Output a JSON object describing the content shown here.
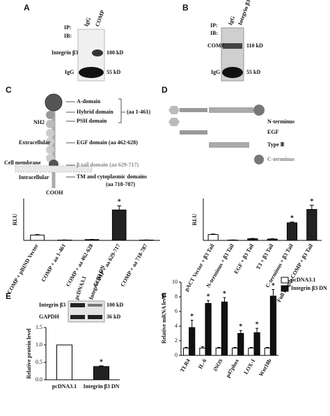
{
  "panel_labels": [
    "A",
    "B",
    "C",
    "D",
    "E",
    "F"
  ],
  "blot_a": {
    "ip": "IP:",
    "ib": "IB:",
    "lanes": [
      "IgG",
      "COMP"
    ],
    "bands": [
      "Integrin β3",
      "IgG"
    ],
    "sizes": [
      "100 kD",
      "55 kD"
    ]
  },
  "blot_b": {
    "ip": "IP:",
    "ib": "IB:",
    "lanes": [
      "IgG",
      "Integrin β3"
    ],
    "bands": [
      "COMP",
      "IgG"
    ],
    "sizes": [
      "110 kD",
      "55 kD"
    ]
  },
  "diagram_c": {
    "domains": [
      "A-domain",
      "Hybrid domain",
      "PSH domain",
      "EGF domain (aa 462-628)",
      "β tail domain (aa 629-717)",
      "TM and cytoplasmic domains"
    ],
    "ranges": [
      "(aa 1-461)",
      "(aa 718-787)"
    ],
    "ends": [
      "NH2",
      "COOH"
    ],
    "regions": [
      "Extracellular",
      "Cell membrane",
      "Intracellular"
    ]
  },
  "diagram_d": {
    "legend": [
      "N-terminus",
      "EGF",
      "Type Ⅲ",
      "C-terminus"
    ]
  },
  "blot_e": {
    "lanes": [
      "pcDNA3.1",
      "Integrin β3 DN"
    ],
    "bands": [
      "Integrin β3",
      "GAPDH"
    ],
    "sizes": [
      "100 kD",
      "36 kD"
    ]
  },
  "chart_data": [
    {
      "type": "bar",
      "y_label": "RLU",
      "categories": [
        "COMP + pBIND Vector",
        "COMP + aa 1-461",
        "COMP + aa 462-628",
        "COMP + aa 629-717",
        "COMP + aa 718-787"
      ],
      "values": [
        0.32,
        0.02,
        0.05,
        1.82,
        0.02
      ],
      "errors": [
        0.03,
        0.01,
        0.01,
        0.25,
        0.01
      ],
      "annotations": [
        null,
        null,
        null,
        "*",
        null
      ],
      "colors": [
        "#ffffff",
        "#222222",
        "#222222",
        "#222222",
        "#222222"
      ],
      "ylim": [
        0,
        2.5
      ]
    },
    {
      "type": "bar",
      "y_label": "RLU",
      "categories": [
        "pACT Vector + β3 Tail",
        "N-terminus + β3 Tail",
        "EGF + β3 Tail",
        "T3 + β3 Tail",
        "C-terminus + β3 Tail",
        "Full length COMP + β3 Tail"
      ],
      "values": [
        0.35,
        0.02,
        0.1,
        0.08,
        1.05,
        1.85
      ],
      "errors": [
        0.03,
        0.01,
        0.02,
        0.02,
        0.05,
        0.25
      ],
      "annotations": [
        null,
        null,
        null,
        null,
        "*",
        "*"
      ],
      "colors": [
        "#ffffff",
        "#222222",
        "#222222",
        "#222222",
        "#222222",
        "#222222"
      ],
      "ylim": [
        0,
        2.5
      ]
    },
    {
      "type": "bar",
      "y_label": "Relative protein level",
      "categories": [
        "pcDNA3.1",
        "Integrin β3 DN"
      ],
      "values": [
        1.0,
        0.38
      ],
      "errors": [
        0,
        0.02
      ],
      "annotations": [
        null,
        "*"
      ],
      "colors": [
        "#ffffff",
        "#222222"
      ],
      "ylim": [
        0,
        1.5
      ],
      "yticks": [
        {
          "value": 0,
          "label": "0.0"
        },
        {
          "value": 0.5,
          "label": "0.5"
        },
        {
          "value": 1,
          "label": "1.0"
        },
        {
          "value": 1.5,
          "label": "1.5"
        }
      ]
    },
    {
      "type": "grouped-bar",
      "y_label": "Relative mRNA level",
      "categories": [
        "TLR4",
        "IL-6",
        "iNOS",
        "p47phox",
        "LOX-1",
        "Wnt10b"
      ],
      "series": [
        {
          "name": "pcDNA3.1",
          "color": "#ffffff",
          "values": [
            1,
            1,
            1,
            1,
            1,
            1
          ],
          "errors": [
            0.1,
            0.2,
            0.1,
            0.1,
            0.1,
            0.1
          ],
          "annotations": [
            null,
            null,
            null,
            null,
            null,
            null
          ]
        },
        {
          "name": "Integrin β3 DN",
          "color": "#111111",
          "values": [
            3.8,
            7.1,
            7.3,
            3.0,
            3.1,
            8.1
          ],
          "errors": [
            1.0,
            0.4,
            0.6,
            0.4,
            0.6,
            0.9
          ],
          "annotations": [
            "*",
            "*",
            "*",
            "*",
            "*",
            "*"
          ]
        }
      ],
      "ylim": [
        0,
        10
      ],
      "yticks": [
        0,
        2,
        4,
        6,
        8,
        10
      ],
      "legend": "upper right"
    }
  ]
}
